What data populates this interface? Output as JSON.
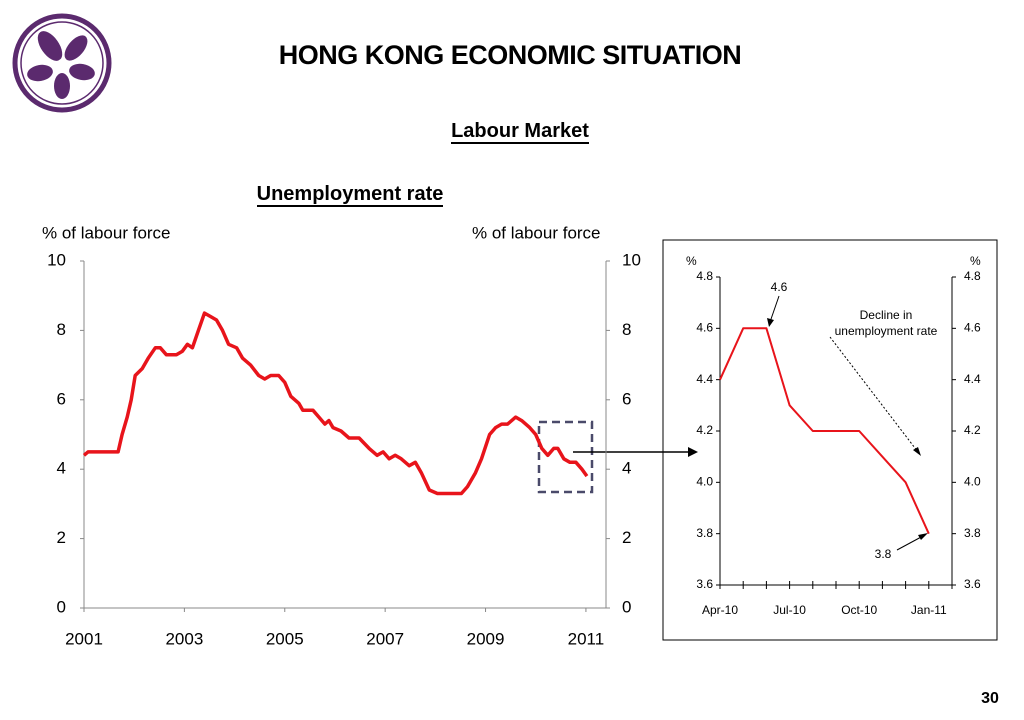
{
  "header": {
    "title": "HONG KONG ECONOMIC SITUATION",
    "subtitle": "Labour Market",
    "page_number": "30"
  },
  "chart_data": [
    {
      "type": "line",
      "title": "Unemployment rate",
      "ylabel": "% of labour force",
      "y2label": "% of labour force",
      "x": [
        2001.0,
        2001.08,
        2001.48,
        2001.68,
        2001.76,
        2001.86,
        2001.94,
        2002.02,
        2002.16,
        2002.28,
        2002.42,
        2002.52,
        2002.64,
        2002.84,
        2002.96,
        2003.06,
        2003.16,
        2003.28,
        2003.4,
        2003.52,
        2003.64,
        2003.76,
        2003.88,
        2004.04,
        2004.16,
        2004.32,
        2004.48,
        2004.6,
        2004.72,
        2004.88,
        2005.0,
        2005.12,
        2005.28,
        2005.36,
        2005.56,
        2005.68,
        2005.8,
        2005.88,
        2005.96,
        2006.12,
        2006.28,
        2006.48,
        2006.68,
        2006.84,
        2006.96,
        2007.08,
        2007.2,
        2007.32,
        2007.48,
        2007.6,
        2007.72,
        2007.88,
        2008.04,
        2008.52,
        2008.64,
        2008.8,
        2008.92,
        2009.08,
        2009.2,
        2009.32,
        2009.44,
        2009.6,
        2009.72,
        2009.88,
        2010.0,
        2010.12,
        2010.24,
        2010.36,
        2010.44,
        2010.56,
        2010.68,
        2010.8,
        2010.92,
        2011.02
      ],
      "series": [
        {
          "color": "#e8141b",
          "values": [
            4.4,
            4.5,
            4.5,
            4.5,
            5.0,
            5.5,
            6.0,
            6.7,
            6.9,
            7.2,
            7.5,
            7.5,
            7.3,
            7.3,
            7.4,
            7.6,
            7.5,
            8.0,
            8.5,
            8.4,
            8.3,
            8.0,
            7.6,
            7.5,
            7.2,
            7.0,
            6.7,
            6.6,
            6.7,
            6.7,
            6.5,
            6.1,
            5.9,
            5.7,
            5.7,
            5.5,
            5.3,
            5.4,
            5.2,
            5.1,
            4.9,
            4.9,
            4.6,
            4.4,
            4.5,
            4.3,
            4.4,
            4.3,
            4.1,
            4.2,
            3.9,
            3.4,
            3.3,
            3.3,
            3.5,
            3.9,
            4.3,
            5.0,
            5.2,
            5.3,
            5.3,
            5.5,
            5.4,
            5.2,
            5.0,
            4.6,
            4.4,
            4.6,
            4.6,
            4.3,
            4.2,
            4.2,
            4.0,
            3.8
          ]
        }
      ],
      "xlim": [
        2001,
        2011.4
      ],
      "xticks": [
        2001,
        2003,
        2005,
        2007,
        2009,
        2011
      ],
      "ylim": [
        0,
        10
      ],
      "yticks": [
        0,
        2,
        4,
        6,
        8,
        10
      ],
      "y2lim": [
        0,
        10
      ],
      "y2ticks": [
        0,
        2,
        4,
        6,
        8,
        10
      ]
    },
    {
      "type": "line",
      "ylabel": "%",
      "y2label": "%",
      "categories": [
        "Apr-10",
        null,
        null,
        "Jul-10",
        null,
        null,
        "Oct-10",
        null,
        null,
        "Jan-11"
      ],
      "series": [
        {
          "color": "#e8141b",
          "values": [
            4.4,
            4.6,
            4.6,
            4.3,
            4.2,
            4.2,
            4.2,
            4.1,
            4.0,
            3.8
          ]
        }
      ],
      "ylim": [
        3.6,
        4.8
      ],
      "yticks": [
        3.6,
        3.8,
        {
          "value": 4,
          "label": "4.0"
        },
        4.2,
        4.4,
        4.6,
        4.8
      ],
      "y2lim": [
        3.6,
        4.8
      ],
      "y2ticks": [
        3.6,
        3.8,
        {
          "value": 4,
          "label": "4.0"
        },
        4.2,
        4.4,
        4.6,
        4.8
      ],
      "annotations": [
        "4.6",
        "Decline in unemployment rate",
        "3.8"
      ]
    }
  ]
}
